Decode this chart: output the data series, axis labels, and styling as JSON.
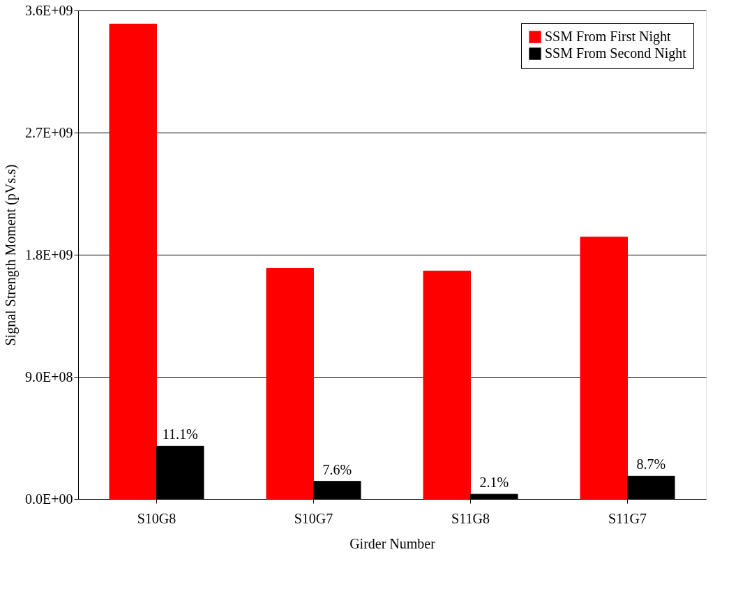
{
  "chart_data": {
    "type": "bar",
    "xlabel": "Girder Number",
    "ylabel": "Signal Strength Moment (pVs.s)",
    "categories": [
      "S10G8",
      "S10G7",
      "S11G8",
      "S11G7"
    ],
    "series": [
      {
        "name": "SSM From First Night",
        "color": "#ff0000",
        "values": [
          3500000000.0,
          1700000000.0,
          1680000000.0,
          1930000000.0
        ]
      },
      {
        "name": "SSM From Second Night",
        "color": "#000000",
        "values": [
          389000000.0,
          130000000.0,
          35000000.0,
          168000000.0
        ]
      }
    ],
    "annotations": [
      {
        "text": "11.1%",
        "x": "S10G8",
        "y": 389000000.0
      },
      {
        "text": "7.6%",
        "x": "S10G7",
        "y": 130000000.0
      },
      {
        "text": "2.1%",
        "x": "S11G8",
        "y": 35000000.0
      },
      {
        "text": "8.7%",
        "x": "S11G7",
        "y": 168000000.0
      }
    ],
    "ylim": [
      0,
      3600000000.0
    ],
    "yticks": [
      {
        "value": 0,
        "label": "0.0E+00"
      },
      {
        "value": 900000000.0,
        "label": "9.0E+08"
      },
      {
        "value": 1800000000.0,
        "label": "1.8E+09"
      },
      {
        "value": 2700000000.0,
        "label": "2.7E+09"
      },
      {
        "value": 3600000000.0,
        "label": "3.6E+09"
      }
    ],
    "grid": "y",
    "legend": "top right"
  }
}
